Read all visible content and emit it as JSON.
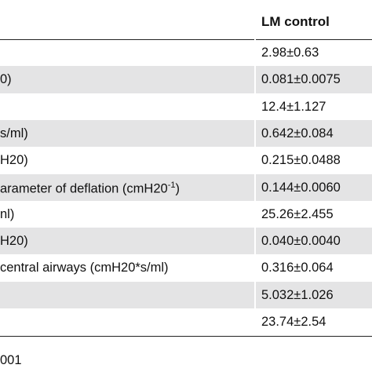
{
  "table": {
    "header": {
      "value": "LM control"
    },
    "rows": [
      {
        "value": "2.98±0.63"
      },
      {
        "label": "0)",
        "value": "0.081±0.0075"
      },
      {
        "value": "12.4±1.127"
      },
      {
        "label": "s/ml)",
        "value": "0.642±0.084"
      },
      {
        "label": "H20)",
        "value": "0.215±0.0488"
      },
      {
        "label": "arameter of deflation (cmH20",
        "label_sup": "-1",
        "label_end": ")",
        "value": "0.144±0.0060"
      },
      {
        "label": "nl)",
        "value": "25.26±2.455"
      },
      {
        "label": "H20)",
        "value": "0.040±0.0040"
      },
      {
        "label": "central airways (cmH20*s/ml)",
        "value": "0.316±0.064"
      },
      {
        "value": "5.032±1.026"
      },
      {
        "value": "23.74±2.54"
      }
    ]
  },
  "footer": "001"
}
